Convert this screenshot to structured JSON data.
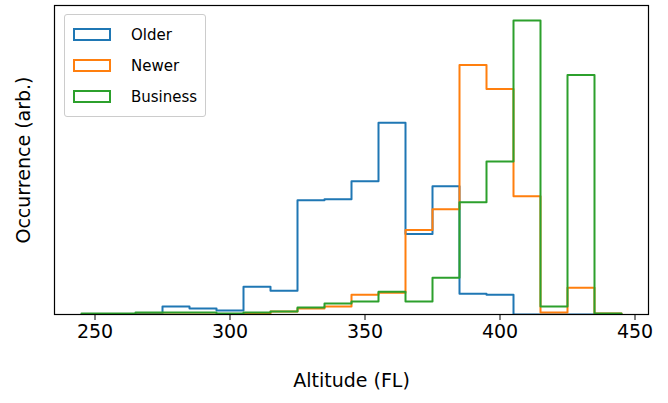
{
  "chart_data": {
    "type": "histogram",
    "xlabel": "Altitude (FL)",
    "ylabel": "Occurrence (arb.)",
    "bins": [
      245,
      255,
      265,
      275,
      285,
      295,
      305,
      315,
      325,
      335,
      345,
      355,
      365,
      375,
      385,
      395,
      405,
      415,
      425,
      435,
      445
    ],
    "series": [
      {
        "name": "Older",
        "color": "#1f77b4",
        "values": [
          0,
          0,
          1,
          8,
          6,
          4,
          28,
          24,
          115,
          116,
          134,
          193,
          81,
          129,
          21,
          20,
          0,
          0,
          0,
          0
        ]
      },
      {
        "name": "Newer",
        "color": "#ff7f0e",
        "values": [
          0,
          0,
          0,
          0,
          0,
          0,
          1,
          3,
          6,
          8,
          20,
          22,
          85,
          106,
          251,
          227,
          119,
          2,
          27,
          1
        ]
      },
      {
        "name": "Business",
        "color": "#2ca02c",
        "values": [
          1,
          1,
          2,
          2,
          2,
          1,
          2,
          3,
          7,
          11,
          13,
          23,
          13,
          37,
          113,
          154,
          296,
          8,
          241,
          1
        ]
      }
    ],
    "xlim": [
      235,
      455
    ],
    "xticks": [
      250,
      300,
      350,
      400,
      450
    ],
    "ylim": [
      0,
      311
    ],
    "yticks": [],
    "tick_labels": "x",
    "legend": "upper left"
  }
}
